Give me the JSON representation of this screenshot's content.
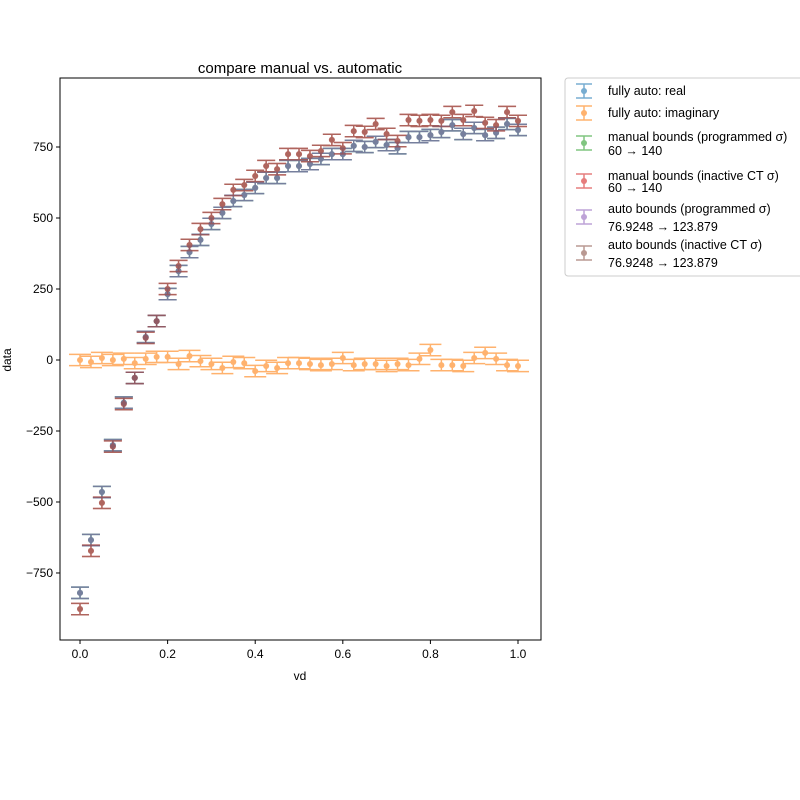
{
  "chart_data": {
    "type": "scatter",
    "title": "compare manual vs. automatic",
    "xlabel": "vd",
    "ylabel": "data",
    "xlim": [
      -0.0457,
      1.0525
    ],
    "ylim": [
      -986,
      993
    ],
    "xticks": [
      "0.0",
      "0.2",
      "0.4",
      "0.6",
      "0.8",
      "1.0"
    ],
    "yticks": [
      "−750",
      "−500",
      "−250",
      "0",
      "250",
      "500",
      "750"
    ],
    "xtick_values": [
      0,
      0.2,
      0.4,
      0.6,
      0.8,
      1.0
    ],
    "ytick_values": [
      -750,
      -500,
      -250,
      0,
      250,
      500,
      750
    ],
    "grid": false,
    "legend_placement": "outside upper right",
    "x": [
      0,
      0.025,
      0.05,
      0.075,
      0.1,
      0.125,
      0.15,
      0.175,
      0.2,
      0.225,
      0.25,
      0.275,
      0.3,
      0.325,
      0.35,
      0.375,
      0.4,
      0.425,
      0.45,
      0.475,
      0.5,
      0.525,
      0.55,
      0.575,
      0.6,
      0.625,
      0.65,
      0.675,
      0.7,
      0.725,
      0.75,
      0.775,
      0.8,
      0.825,
      0.85,
      0.875,
      0.9,
      0.925,
      0.95,
      0.975,
      1.0
    ],
    "yerr": 20,
    "series": [
      {
        "name": "fully auto: real",
        "color": "#1f77b4",
        "values": [
          -820,
          -634,
          -465,
          -300,
          -150,
          -63,
          81,
          137,
          232,
          313,
          380,
          423,
          479,
          518,
          560,
          581,
          606,
          641,
          641,
          683,
          683,
          690,
          708,
          725,
          725,
          754,
          750,
          768,
          757,
          746,
          785,
          785,
          792,
          803,
          827,
          796,
          817,
          792,
          800,
          831,
          810
        ]
      },
      {
        "name": "fully auto: imaginary",
        "color": "#ff7f0e",
        "values": [
          0,
          -7,
          7,
          0,
          4,
          -11,
          4,
          11,
          11,
          -14,
          14,
          -4,
          -14,
          -28,
          -7,
          -11,
          -39,
          -21,
          -28,
          -11,
          -11,
          -14,
          -18,
          -14,
          7,
          -18,
          -14,
          -14,
          -21,
          -14,
          -18,
          4,
          35,
          -18,
          -18,
          -21,
          7,
          25,
          4,
          -18,
          -21
        ]
      },
      {
        "name": "manual bounds (programmed σ)",
        "subtitle": "60 → 140",
        "color": "#2ca02c",
        "values": [
          -820,
          -634,
          -465,
          -300,
          -150,
          -63,
          81,
          137,
          232,
          313,
          380,
          423,
          479,
          518,
          560,
          581,
          606,
          641,
          641,
          683,
          683,
          690,
          708,
          725,
          725,
          754,
          750,
          768,
          757,
          746,
          785,
          785,
          792,
          803,
          827,
          796,
          817,
          792,
          800,
          831,
          810
        ]
      },
      {
        "name": "manual bounds (inactive CT σ)",
        "subtitle": "60 → 140",
        "color": "#d62728",
        "values": [
          -877,
          -672,
          -503,
          -305,
          -155,
          -63,
          78,
          137,
          250,
          331,
          405,
          461,
          500,
          549,
          599,
          616,
          648,
          683,
          672,
          725,
          725,
          718,
          736,
          775,
          746,
          806,
          803,
          831,
          796,
          771,
          845,
          842,
          845,
          842,
          873,
          845,
          877,
          835,
          827,
          873,
          842
        ]
      },
      {
        "name": "auto bounds (programmed σ)",
        "subtitle": "76.9248 → 123.879",
        "color": "#9467bd",
        "values": [
          -820,
          -634,
          -465,
          -300,
          -150,
          -63,
          81,
          137,
          232,
          313,
          380,
          423,
          479,
          518,
          560,
          581,
          606,
          641,
          641,
          683,
          683,
          690,
          708,
          725,
          725,
          754,
          750,
          768,
          757,
          746,
          785,
          785,
          792,
          803,
          827,
          796,
          817,
          792,
          800,
          831,
          810
        ]
      },
      {
        "name": "auto bounds (inactive CT σ)",
        "subtitle": "76.9248 → 123.879",
        "color": "#8c564b",
        "values": [
          -877,
          -672,
          -503,
          -305,
          -155,
          -63,
          78,
          137,
          250,
          331,
          405,
          461,
          500,
          549,
          599,
          616,
          648,
          683,
          672,
          725,
          725,
          718,
          736,
          775,
          746,
          806,
          803,
          831,
          796,
          771,
          845,
          842,
          845,
          842,
          873,
          845,
          877,
          835,
          827,
          873,
          842
        ]
      }
    ]
  }
}
